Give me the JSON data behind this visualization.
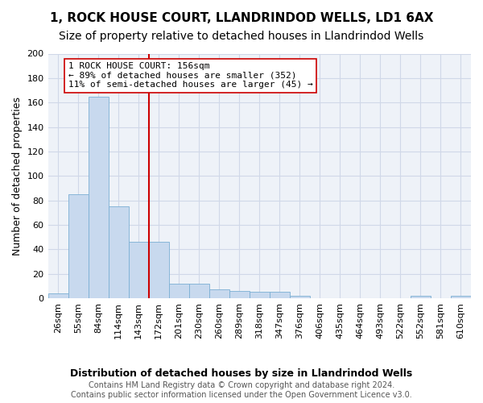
{
  "title": "1, ROCK HOUSE COURT, LLANDRINDOD WELLS, LD1 6AX",
  "subtitle": "Size of property relative to detached houses in Llandrindod Wells",
  "xlabel": "Distribution of detached houses by size in Llandrindod Wells",
  "ylabel": "Number of detached properties",
  "bar_values": [
    4,
    85,
    165,
    75,
    46,
    46,
    12,
    12,
    7,
    6,
    5,
    5,
    2,
    0,
    0,
    0,
    0,
    0,
    2,
    0,
    2
  ],
  "bin_labels": [
    "26sqm",
    "55sqm",
    "84sqm",
    "114sqm",
    "143sqm",
    "172sqm",
    "201sqm",
    "230sqm",
    "260sqm",
    "289sqm",
    "318sqm",
    "347sqm",
    "376sqm",
    "406sqm",
    "435sqm",
    "464sqm",
    "493sqm",
    "522sqm",
    "552sqm",
    "581sqm",
    "610sqm"
  ],
  "bar_color": "#c8d9ee",
  "bar_edge_color": "#7bafd4",
  "vline_x": 4.5,
  "vline_color": "#cc0000",
  "annotation_text": "1 ROCK HOUSE COURT: 156sqm\n← 89% of detached houses are smaller (352)\n11% of semi-detached houses are larger (45) →",
  "annotation_box_edge": "#cc0000",
  "ylim": [
    0,
    200
  ],
  "yticks": [
    0,
    20,
    40,
    60,
    80,
    100,
    120,
    140,
    160,
    180,
    200
  ],
  "grid_color": "#d0d8e8",
  "bg_color": "#eef2f8",
  "footer_text": "Contains HM Land Registry data © Crown copyright and database right 2024.\nContains public sector information licensed under the Open Government Licence v3.0.",
  "title_fontsize": 11,
  "subtitle_fontsize": 10,
  "axis_label_fontsize": 9,
  "tick_fontsize": 8,
  "annotation_fontsize": 8,
  "footer_fontsize": 7
}
